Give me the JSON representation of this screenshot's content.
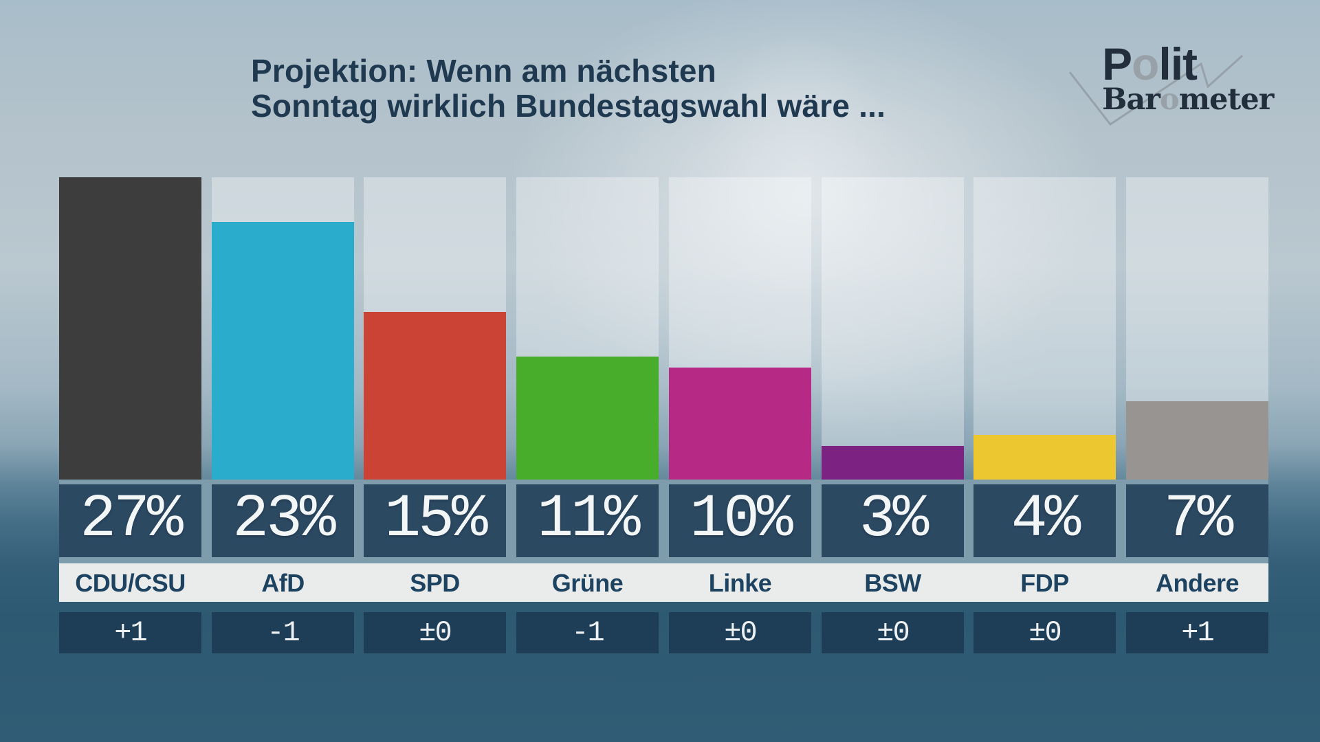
{
  "title": {
    "line1": "Projektion: Wenn am nächsten",
    "line2": "Sonntag wirklich Bundestagswahl wäre ..."
  },
  "logo": {
    "polit_p": "P",
    "polit_o": "o",
    "polit_lit": "lit",
    "baro_bar": "Bar",
    "baro_o": "o",
    "baro_meter": "meter"
  },
  "chart_data": {
    "type": "bar",
    "title": "Projektion: Wenn am nächsten Sonntag wirklich Bundestagswahl wäre ...",
    "categories": [
      "CDU/CSU",
      "AfD",
      "SPD",
      "Grüne",
      "Linke",
      "BSW",
      "FDP",
      "Andere"
    ],
    "values": [
      27,
      23,
      15,
      11,
      10,
      3,
      4,
      7
    ],
    "value_labels": [
      "27%",
      "23%",
      "15%",
      "11%",
      "10%",
      "3%",
      "4%",
      "7%"
    ],
    "changes": [
      "+1",
      "-1",
      "±0",
      "-1",
      "±0",
      "±0",
      "±0",
      "+1"
    ],
    "bar_colors": [
      "#3d3d3d",
      "#2aadcc",
      "#cb4334",
      "#47ad2b",
      "#b62a86",
      "#7b2282",
      "#edc72f",
      "#989492"
    ],
    "xlabel": "",
    "ylabel": "",
    "ylim": [
      0,
      27
    ],
    "grid": false,
    "legend": false
  },
  "colors": {
    "title_text": "#1f3950",
    "percent_box": "#2c4962",
    "percent_band_bg": "#7e9cac",
    "party_strip_bg": "#eaecec",
    "party_text": "#1d4360",
    "change_box": "#1e3d56",
    "column_track": "rgba(255,255,255,0.33)",
    "background_top": "#a8bdca",
    "background_bottom": "#315c75",
    "logo_text": "#232e3d",
    "logo_gray": "#98a1a7"
  }
}
